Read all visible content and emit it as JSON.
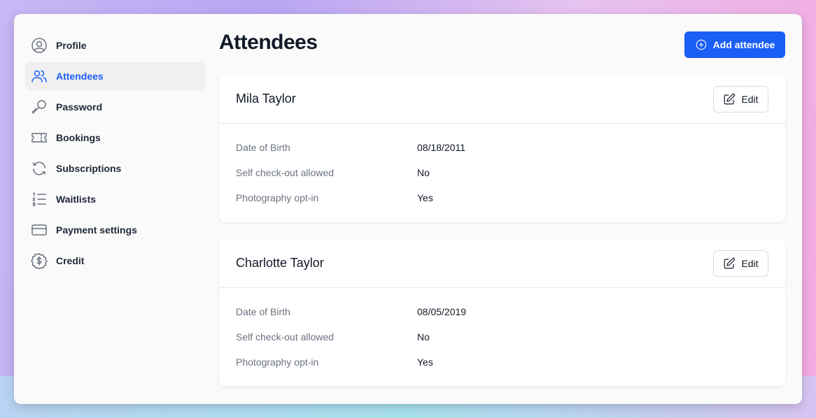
{
  "sidebar": {
    "items": [
      "Profile",
      "Attendees",
      "Password",
      "Bookings",
      "Subscriptions",
      "Waitlists",
      "Payment settings",
      "Credit"
    ]
  },
  "header": {
    "title": "Attendees",
    "button": "Add attendee"
  },
  "attendees": [
    {
      "name": "Mila Taylor",
      "edit": "Edit",
      "fields": [
        {
          "label": "Date of Birth",
          "value": "08/18/2011"
        },
        {
          "label": "Self check-out allowed",
          "value": "No"
        },
        {
          "label": "Photography opt-in",
          "value": "Yes"
        }
      ]
    },
    {
      "name": "Charlotte Taylor",
      "edit": "Edit",
      "fields": [
        {
          "label": "Date of Birth",
          "value": "08/05/2019"
        },
        {
          "label": "Self check-out allowed",
          "value": "No"
        },
        {
          "label": "Photography opt-in",
          "value": "Yes"
        }
      ]
    }
  ]
}
